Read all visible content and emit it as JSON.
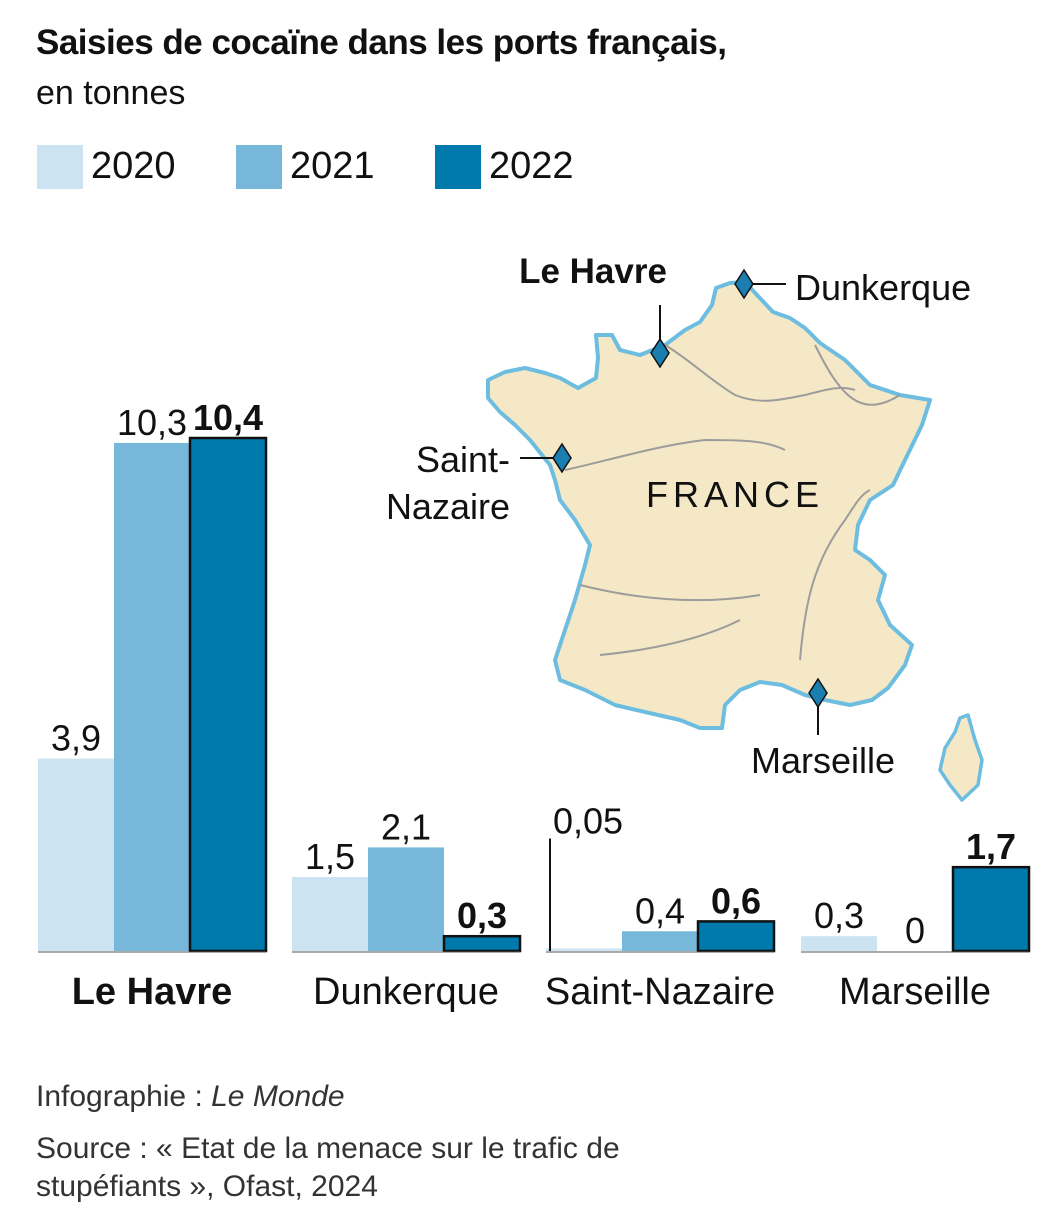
{
  "chart_data": {
    "type": "bar",
    "title": "Saisies de cocaïne dans les ports français,",
    "subtitle": "en tonnes",
    "categories": [
      "Le Havre",
      "Dunkerque",
      "Saint-Nazaire",
      "Marseille"
    ],
    "category_bold": [
      true,
      false,
      false,
      false
    ],
    "series": [
      {
        "name": "2020",
        "color": "#cce3f1",
        "values": [
          3.9,
          1.5,
          0.05,
          0.3
        ],
        "labels": [
          "3,9",
          "1,5",
          "0,05",
          "0,3"
        ],
        "bold": false
      },
      {
        "name": "2021",
        "color": "#77b8da",
        "values": [
          10.3,
          2.1,
          0.4,
          0
        ],
        "labels": [
          "10,3",
          "2,1",
          "0,4",
          "0"
        ],
        "bold": false
      },
      {
        "name": "2022",
        "color": "#0079ac",
        "values": [
          10.4,
          0.3,
          0.6,
          1.7
        ],
        "labels": [
          "10,4",
          "0,3",
          "0,6",
          "1,7"
        ],
        "bold": true
      }
    ],
    "ylim": [
      0,
      10.4
    ],
    "xlabel": "",
    "ylabel": "",
    "grid": false,
    "legend": "top-left"
  },
  "map": {
    "country_label": "FRANCE",
    "ports": [
      {
        "name": "Le Havre",
        "label_line1": "Le Havre",
        "label_line2": "",
        "bold": true
      },
      {
        "name": "Dunkerque",
        "label_line1": "Dunkerque",
        "label_line2": "",
        "bold": false
      },
      {
        "name": "Saint-Nazaire",
        "label_line1": "Saint-",
        "label_line2": "Nazaire",
        "bold": false
      },
      {
        "name": "Marseille",
        "label_line1": "Marseille",
        "label_line2": "",
        "bold": false
      }
    ],
    "land_color": "#f5e8c6",
    "coast_color": "#6dbde0",
    "marker_color": "#1a7fb0"
  },
  "footer": {
    "credit_prefix": "Infographie : ",
    "credit_name": "Le Monde",
    "source": "Source : « Etat de la menace sur le trafic de stupéfiants », Ofast, 2024"
  }
}
